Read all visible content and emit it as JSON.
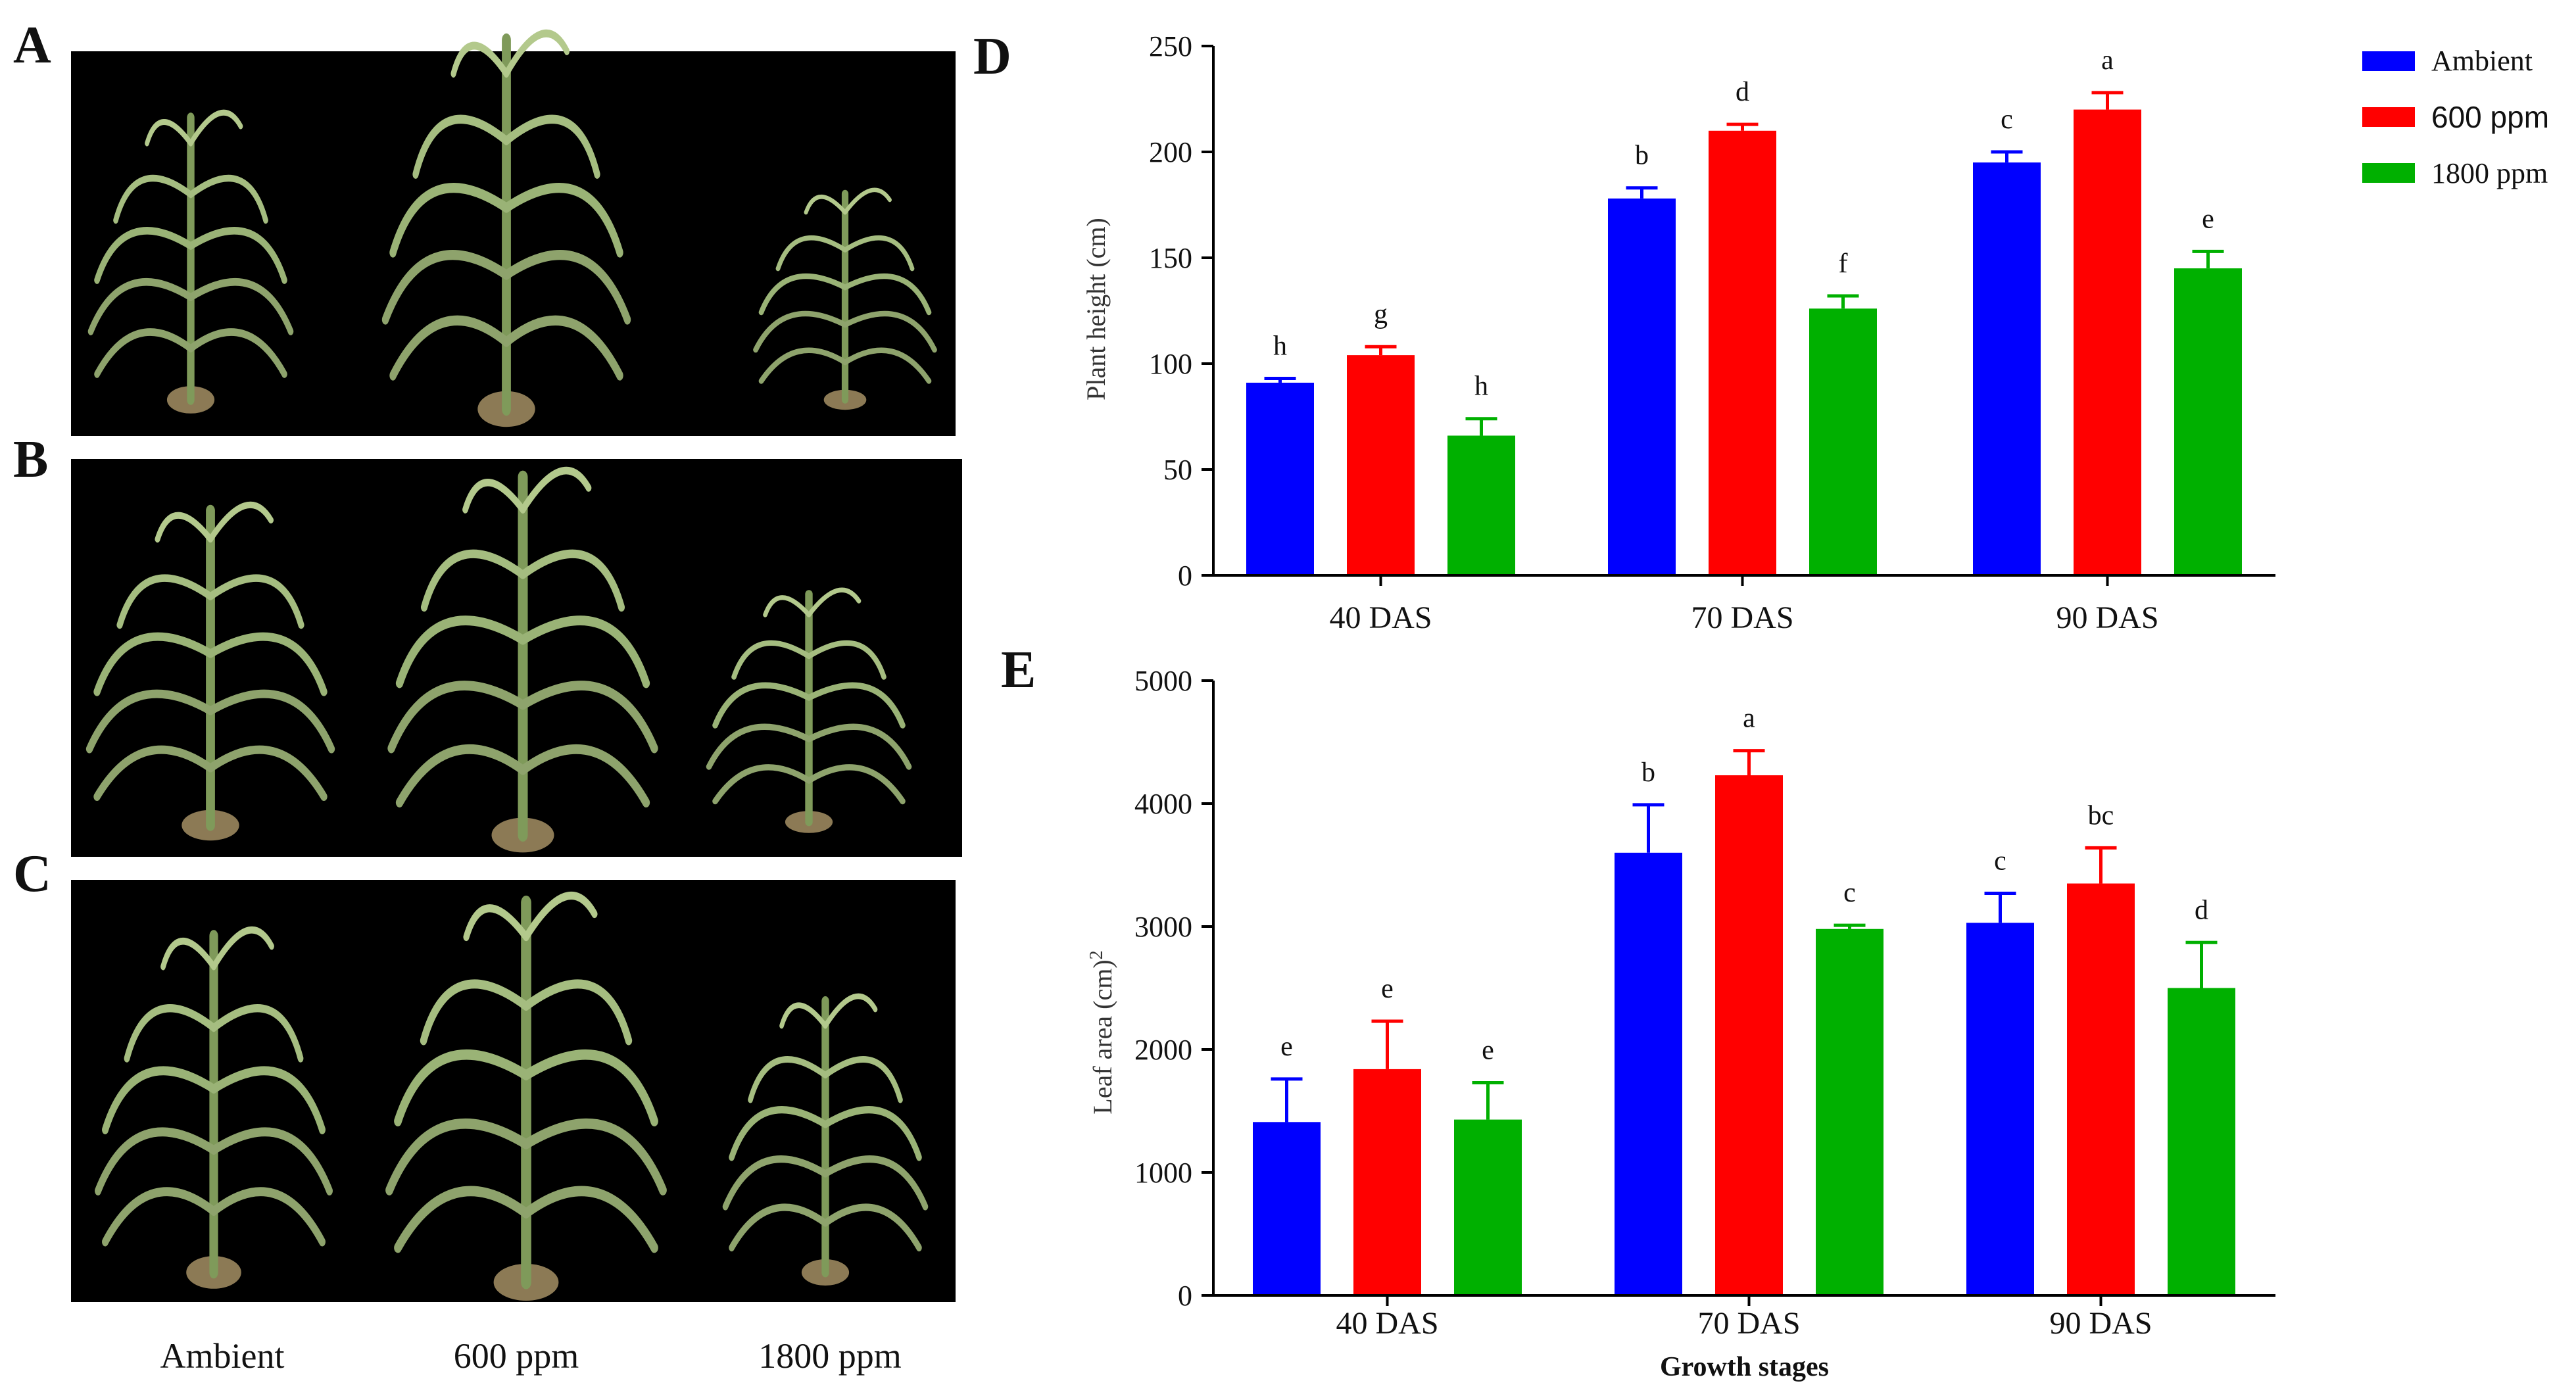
{
  "panels": {
    "a": "A",
    "b": "B",
    "c": "C",
    "d": "D",
    "e": "E"
  },
  "photo_captions": [
    "Ambient",
    "600 ppm",
    "1800 ppm"
  ],
  "colors": {
    "Ambient": "#0000ff",
    "600 ppm": "#ff0000",
    "1800 ppm": "#00b000"
  },
  "legend": {
    "entries": [
      "Ambient",
      "600 ppm",
      "1800 ppm"
    ],
    "placement": "top-right"
  },
  "chart_data": [
    {
      "id": "D",
      "type": "bar",
      "title": "",
      "ylabel": "Plant height (cm)",
      "xlabel": "",
      "ylim": [
        0,
        250
      ],
      "yticks": [
        "0",
        "50",
        "100",
        "150",
        "200",
        "250"
      ],
      "categories": [
        "40 DAS",
        "70 DAS",
        "90 DAS"
      ],
      "series": [
        {
          "name": "Ambient",
          "values": [
            91,
            178,
            195
          ],
          "errors": [
            2,
            5,
            5
          ],
          "labels": [
            "h",
            "b",
            "c"
          ]
        },
        {
          "name": "600 ppm",
          "values": [
            104,
            210,
            220
          ],
          "errors": [
            4,
            3,
            8
          ],
          "labels": [
            "g",
            "d",
            "a"
          ]
        },
        {
          "name": "1800 ppm",
          "values": [
            66,
            126,
            145
          ],
          "errors": [
            8,
            6,
            8
          ],
          "labels": [
            "h",
            "f",
            "e"
          ]
        }
      ]
    },
    {
      "id": "E",
      "type": "bar",
      "title": "",
      "ylabel": "Leaf area (cm)",
      "ylabel_superscript": "2",
      "xlabel": "Growth stages",
      "ylim": [
        0,
        5000
      ],
      "yticks": [
        "0",
        "1000",
        "2000",
        "3000",
        "4000",
        "5000"
      ],
      "categories": [
        "40 DAS",
        "70 DAS",
        "90 DAS"
      ],
      "series": [
        {
          "name": "Ambient",
          "values": [
            1410,
            3600,
            3030
          ],
          "errors": [
            350,
            390,
            240
          ],
          "labels": [
            "e",
            "b",
            "c"
          ]
        },
        {
          "name": "600 ppm",
          "values": [
            1840,
            4230,
            3350
          ],
          "errors": [
            390,
            200,
            290
          ],
          "labels": [
            "e",
            "a",
            "bc"
          ]
        },
        {
          "name": "1800 ppm",
          "values": [
            1430,
            2980,
            2500
          ],
          "errors": [
            300,
            30,
            370
          ],
          "labels": [
            "e",
            "c",
            "d"
          ]
        }
      ]
    }
  ]
}
